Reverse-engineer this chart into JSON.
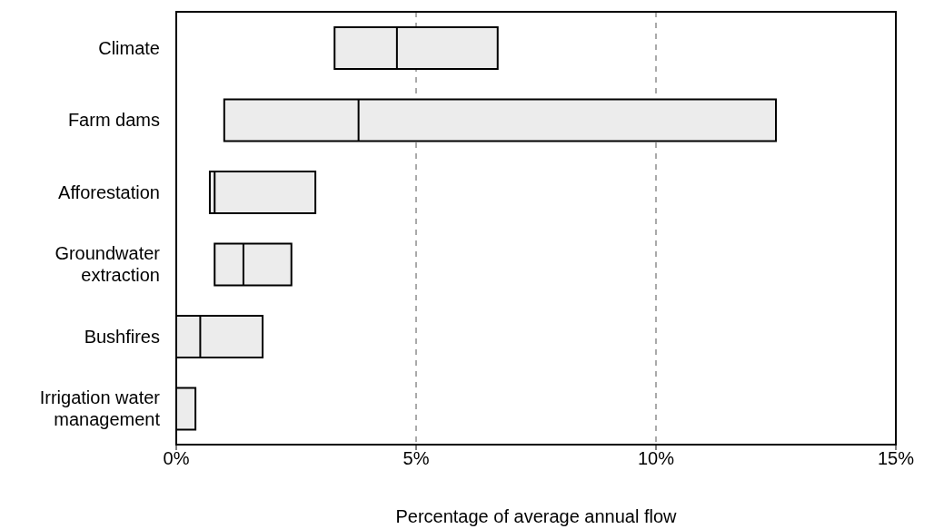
{
  "chart_data": {
    "type": "box",
    "orientation": "horizontal",
    "xlabel": "Percentage of average annual flow",
    "categories": [
      "Climate",
      "Farm dams",
      "Afforestation",
      "Groundwater extraction",
      "Bushfires",
      "Irrigation water management"
    ],
    "boxes": [
      {
        "low": 3.3,
        "q1": 3.3,
        "median": 4.6,
        "q3": 6.7,
        "high": 6.7
      },
      {
        "low": 1.0,
        "q1": 1.0,
        "median": 3.8,
        "q3": 12.5,
        "high": 12.5
      },
      {
        "low": 0.7,
        "q1": 0.7,
        "median": 0.8,
        "q3": 2.9,
        "high": 2.9
      },
      {
        "low": 0.8,
        "q1": 0.8,
        "median": 1.4,
        "q3": 2.4,
        "high": 2.4
      },
      {
        "low": 0,
        "q1": 0,
        "median": 0.5,
        "q3": 1.8,
        "high": 1.8
      },
      {
        "low": 0,
        "q1": 0,
        "median": 0,
        "q3": 0.4,
        "high": 0.4
      }
    ],
    "color": "#ececec",
    "xlim": [
      0,
      15
    ],
    "xticks": [
      {
        "value": 0,
        "label": "0%"
      },
      {
        "value": 5,
        "label": "5%"
      },
      {
        "value": 10,
        "label": "10%"
      },
      {
        "value": 15,
        "label": "15%"
      }
    ],
    "grid": "x"
  }
}
